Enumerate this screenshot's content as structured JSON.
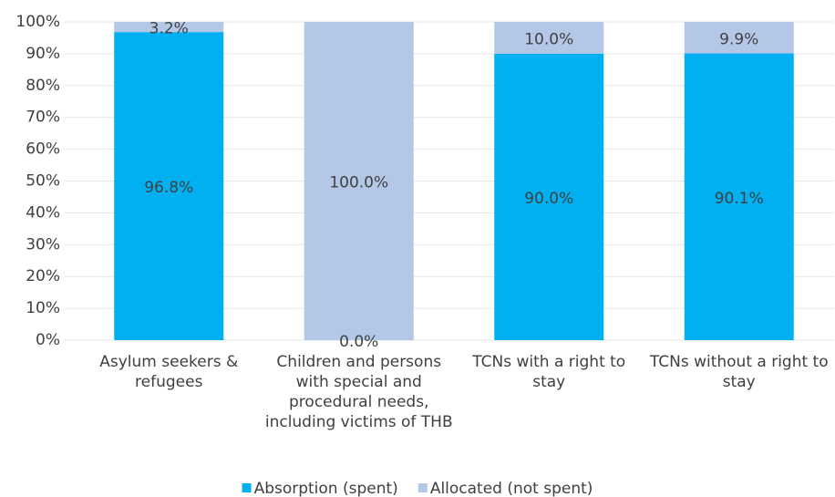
{
  "chart_data": {
    "type": "stacked_bar",
    "categories": [
      "Asylum seekers & refugees",
      "Children and persons with special and procedural needs, including victims of THB",
      "TCNs with a right to stay",
      "TCNs without a right to stay"
    ],
    "series": [
      {
        "name": "Absorption (spent)",
        "color": "#00b0f0",
        "values": [
          96.8,
          0.0,
          90.0,
          90.1
        ],
        "value_labels": [
          "96.8%",
          "0.0%",
          "90.0%",
          "90.1%"
        ]
      },
      {
        "name": "Allocated (not spent)",
        "color": "#b4c7e7",
        "values": [
          3.2,
          100.0,
          10.0,
          9.9
        ],
        "value_labels": [
          "3.2%",
          "100.0%",
          "10.0%",
          "9.9%"
        ]
      }
    ],
    "ylim": [
      0,
      100
    ],
    "yticks": [
      {
        "value": 0,
        "label": "0%"
      },
      {
        "value": 10,
        "label": "10%"
      },
      {
        "value": 20,
        "label": "20%"
      },
      {
        "value": 30,
        "label": "30%"
      },
      {
        "value": 40,
        "label": "40%"
      },
      {
        "value": 50,
        "label": "50%"
      },
      {
        "value": 60,
        "label": "60%"
      },
      {
        "value": 70,
        "label": "70%"
      },
      {
        "value": 80,
        "label": "80%"
      },
      {
        "value": 90,
        "label": "90%"
      },
      {
        "value": 100,
        "label": "100%"
      }
    ],
    "grid": true,
    "legend": "bottom"
  }
}
